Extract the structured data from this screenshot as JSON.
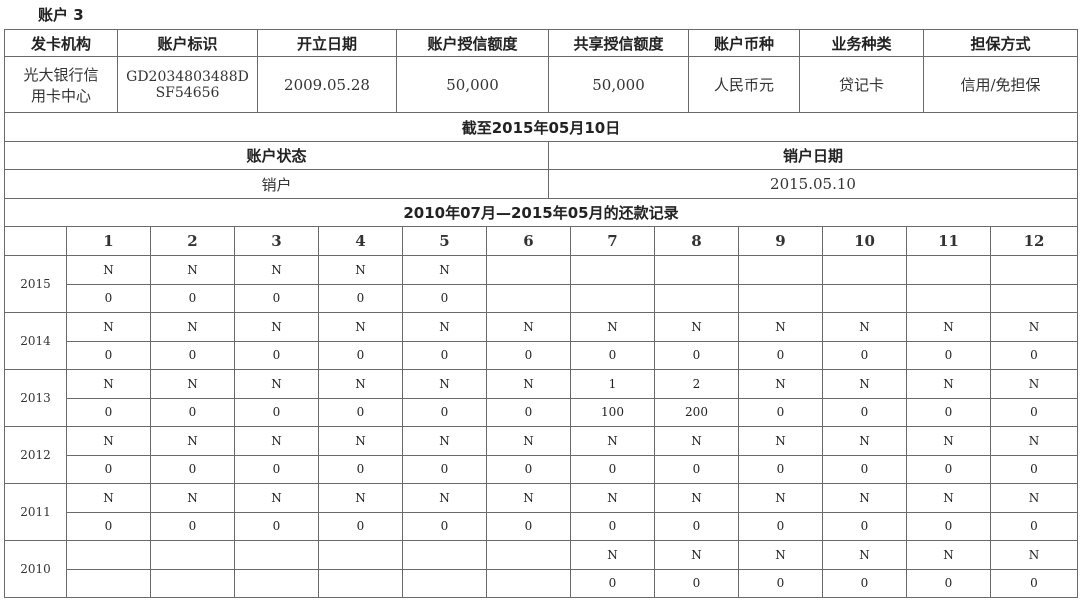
{
  "title": "账户 3",
  "account": {
    "headers": [
      "发卡机构",
      "账户标识",
      "开立日期",
      "账户授信额度",
      "共享授信额度",
      "账户币种",
      "业务种类",
      "担保方式"
    ],
    "issuer_lines": [
      "光大银行信",
      "用卡中心"
    ],
    "account_id_lines": [
      "GD2034803488D",
      "SF54656"
    ],
    "open_date": "2009.05.28",
    "credit_limit": "50,000",
    "shared_limit": "50,000",
    "currency": "人民币元",
    "business_type": "贷记卡",
    "guarantee": "信用/免担保"
  },
  "as_of": "截至2015年05月10日",
  "status": {
    "label": "账户状态",
    "value": "销户",
    "close_label": "销户日期",
    "close_date": "2015.05.10"
  },
  "repayment": {
    "title": "2010年07月—2015年05月的还款记录",
    "months": [
      "1",
      "2",
      "3",
      "4",
      "5",
      "6",
      "7",
      "8",
      "9",
      "10",
      "11",
      "12"
    ],
    "years": [
      {
        "year": "2015",
        "status": [
          "N",
          "N",
          "N",
          "N",
          "N",
          "",
          "",
          "",
          "",
          "",
          "",
          ""
        ],
        "amount": [
          "0",
          "0",
          "0",
          "0",
          "0",
          "",
          "",
          "",
          "",
          "",
          "",
          ""
        ]
      },
      {
        "year": "2014",
        "status": [
          "N",
          "N",
          "N",
          "N",
          "N",
          "N",
          "N",
          "N",
          "N",
          "N",
          "N",
          "N"
        ],
        "amount": [
          "0",
          "0",
          "0",
          "0",
          "0",
          "0",
          "0",
          "0",
          "0",
          "0",
          "0",
          "0"
        ]
      },
      {
        "year": "2013",
        "status": [
          "N",
          "N",
          "N",
          "N",
          "N",
          "N",
          "1",
          "2",
          "N",
          "N",
          "N",
          "N"
        ],
        "amount": [
          "0",
          "0",
          "0",
          "0",
          "0",
          "0",
          "100",
          "200",
          "0",
          "0",
          "0",
          "0"
        ]
      },
      {
        "year": "2012",
        "status": [
          "N",
          "N",
          "N",
          "N",
          "N",
          "N",
          "N",
          "N",
          "N",
          "N",
          "N",
          "N"
        ],
        "amount": [
          "0",
          "0",
          "0",
          "0",
          "0",
          "0",
          "0",
          "0",
          "0",
          "0",
          "0",
          "0"
        ]
      },
      {
        "year": "2011",
        "status": [
          "N",
          "N",
          "N",
          "N",
          "N",
          "N",
          "N",
          "N",
          "N",
          "N",
          "N",
          "N"
        ],
        "amount": [
          "0",
          "0",
          "0",
          "0",
          "0",
          "0",
          "0",
          "0",
          "0",
          "0",
          "0",
          "0"
        ]
      },
      {
        "year": "2010",
        "status": [
          "",
          "",
          "",
          "",
          "",
          "",
          "N",
          "N",
          "N",
          "N",
          "N",
          "N"
        ],
        "amount": [
          "",
          "",
          "",
          "",
          "",
          "",
          "0",
          "0",
          "0",
          "0",
          "0",
          "0"
        ]
      }
    ]
  }
}
